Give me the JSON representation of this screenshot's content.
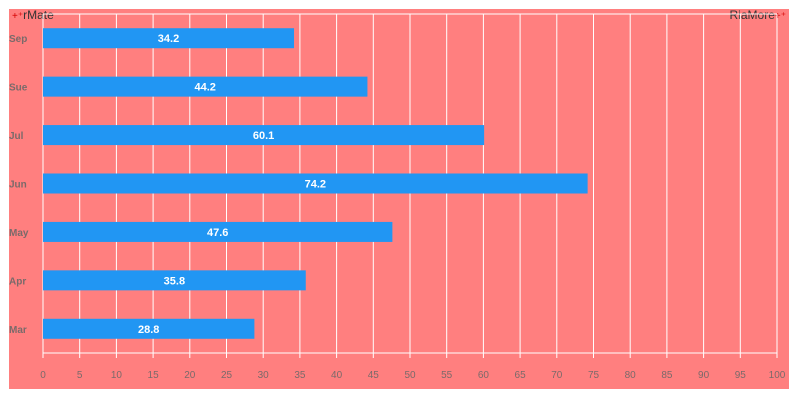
{
  "brand": {
    "left": "rMate",
    "right": "RiaMore"
  },
  "colors": {
    "background": "#ff7f7f",
    "bar": "#2196f3",
    "grid": "#ffffff"
  },
  "chart_data": {
    "type": "bar",
    "orientation": "horizontal",
    "categories": [
      "Mar",
      "Apr",
      "May",
      "Jun",
      "Jul",
      "Sue",
      "Sep"
    ],
    "values": [
      28.8,
      35.8,
      47.6,
      74.2,
      60.1,
      44.2,
      34.2
    ],
    "xlim": [
      0,
      100
    ],
    "x_ticks": [
      0,
      5,
      10,
      15,
      20,
      25,
      30,
      35,
      40,
      45,
      50,
      55,
      60,
      65,
      70,
      75,
      80,
      85,
      90,
      95,
      100
    ],
    "grid": true,
    "data_labels": true
  }
}
